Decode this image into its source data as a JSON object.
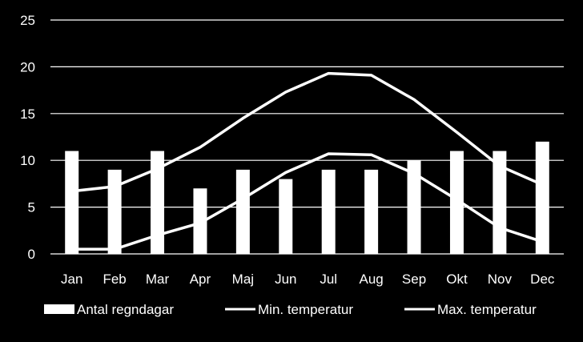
{
  "chart_data": {
    "type": "bar",
    "categories": [
      "Jan",
      "Feb",
      "Mar",
      "Apr",
      "Maj",
      "Jun",
      "Jul",
      "Aug",
      "Sep",
      "Okt",
      "Nov",
      "Dec"
    ],
    "series": [
      {
        "name": "Antal regndagar",
        "type": "bar",
        "values": [
          11,
          9,
          11,
          7,
          9,
          8,
          9,
          9,
          10,
          11,
          11,
          12
        ]
      },
      {
        "name": "Min. temperatur",
        "type": "line",
        "values": [
          0.5,
          0.5,
          2.0,
          3.3,
          5.9,
          8.7,
          10.7,
          10.6,
          8.6,
          5.8,
          2.8,
          1.3
        ]
      },
      {
        "name": "Max. temperatur",
        "type": "line",
        "values": [
          6.7,
          7.2,
          9.1,
          11.4,
          14.5,
          17.3,
          19.3,
          19.1,
          16.5,
          13.0,
          9.4,
          7.4
        ]
      }
    ],
    "yticks": [
      0,
      5,
      10,
      15,
      20,
      25
    ],
    "ylim": [
      0,
      25
    ],
    "grid": true,
    "legend_position": "bottom",
    "colors": {
      "background": "#000000",
      "bars": "#ffffff",
      "lines": "#ffffff",
      "grid": "#ffffff",
      "text": "#ffffff"
    }
  }
}
